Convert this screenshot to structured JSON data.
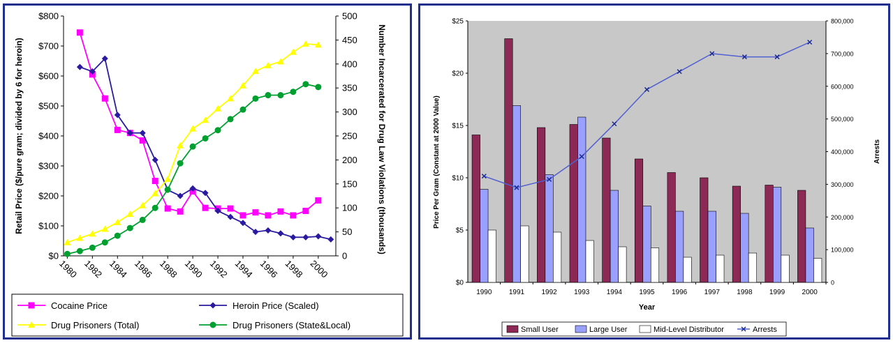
{
  "chart_data": [
    {
      "type": "line",
      "x": [
        1980,
        1981,
        1982,
        1983,
        1984,
        1985,
        1986,
        1987,
        1988,
        1989,
        1990,
        1991,
        1992,
        1993,
        1994,
        1995,
        1996,
        1997,
        1998,
        1999,
        2000
      ],
      "x_ticks": [
        "1980",
        "1982",
        "1984",
        "1986",
        "1988",
        "1990",
        "1992",
        "1994",
        "1996",
        "1998",
        "2000"
      ],
      "y_left_ticks": [
        "$0",
        "$100",
        "$200",
        "$300",
        "$400",
        "$500",
        "$600",
        "$700",
        "$800"
      ],
      "y_right_ticks": [
        "0",
        "50",
        "100",
        "150",
        "200",
        "250",
        "300",
        "350",
        "400",
        "450",
        "500"
      ],
      "ylabel": "Retail Price ($/pure gram; divided by 6 for heroin)",
      "ylabel_right": "Number Incarcerated for Drug Law Violations (thousands)",
      "ylim": [
        0,
        800
      ],
      "ylim_right": [
        0,
        500
      ],
      "grid": false,
      "legend_position": "bottom",
      "series": [
        {
          "name": "Cocaine Price",
          "axis": "left",
          "color": "#ff00ff",
          "marker": "square",
          "x": [
            1981,
            1982,
            1983,
            1984,
            1985,
            1986,
            1987,
            1988,
            1989,
            1990,
            1991,
            1992,
            1993,
            1994,
            1995,
            1996,
            1997,
            1998,
            1999,
            2000
          ],
          "values": [
            745,
            605,
            525,
            420,
            410,
            385,
            250,
            158,
            148,
            215,
            160,
            158,
            158,
            135,
            145,
            135,
            148,
            135,
            150,
            185
          ]
        },
        {
          "name": "Heroin Price (Scaled)",
          "axis": "left",
          "color": "#2a1aa0",
          "marker": "diamond",
          "x": [
            1981,
            1982,
            1983,
            1984,
            1985,
            1986,
            1987,
            1988,
            1989,
            1990,
            1991,
            1992,
            1993,
            1994,
            1995,
            1996,
            1997,
            1998,
            1999,
            2000,
            2001
          ],
          "values": [
            630,
            615,
            658,
            470,
            410,
            410,
            320,
            220,
            200,
            225,
            210,
            150,
            130,
            110,
            80,
            85,
            75,
            62,
            62,
            65,
            55
          ]
        },
        {
          "name": "Drug Prisoners (Total)",
          "axis": "right",
          "color": "#ffff00",
          "marker": "triangle",
          "x": [
            1980,
            1981,
            1982,
            1983,
            1984,
            1985,
            1986,
            1987,
            1988,
            1989,
            1990,
            1991,
            1992,
            1993,
            1994,
            1995,
            1996,
            1997,
            1998,
            1999,
            2000
          ],
          "values": [
            28,
            37,
            46,
            56,
            70,
            87,
            105,
            130,
            160,
            230,
            265,
            283,
            307,
            328,
            355,
            385,
            397,
            405,
            425,
            442,
            440
          ]
        },
        {
          "name": "Drug Prisoners (State&Local)",
          "axis": "right",
          "color": "#00a030",
          "marker": "circle",
          "x": [
            1980,
            1981,
            1982,
            1983,
            1984,
            1985,
            1986,
            1987,
            1988,
            1989,
            1990,
            1991,
            1992,
            1993,
            1994,
            1995,
            1996,
            1997,
            1998,
            1999,
            2000
          ],
          "values": [
            4,
            10,
            17,
            28,
            42,
            58,
            75,
            100,
            138,
            193,
            228,
            245,
            262,
            285,
            305,
            328,
            335,
            335,
            342,
            358,
            352
          ]
        }
      ]
    },
    {
      "type": "bar",
      "categories": [
        "1990",
        "1991",
        "1992",
        "1993",
        "1994",
        "1995",
        "1996",
        "1997",
        "1998",
        "1999",
        "2000"
      ],
      "xlabel": "Year",
      "ylabel": "Price Per Gram (Constant at 2000 Value)",
      "ylabel_right": "Arrests",
      "y_left_ticks": [
        "$0",
        "$5",
        "$10",
        "$15",
        "$20",
        "$25"
      ],
      "y_right_ticks": [
        "0",
        "100,000",
        "200,000",
        "300,000",
        "400,000",
        "500,000",
        "600,000",
        "700,000",
        "800,000"
      ],
      "ylim": [
        0,
        25
      ],
      "ylim_right": [
        0,
        800000
      ],
      "grid": false,
      "legend_position": "bottom",
      "background": "#c8c8c8",
      "series": [
        {
          "name": "Small User",
          "axis": "left",
          "color": "#8c2a55",
          "values": [
            14.1,
            23.3,
            14.8,
            15.1,
            13.8,
            11.8,
            10.5,
            10.0,
            9.2,
            9.3,
            8.8
          ]
        },
        {
          "name": "Large User",
          "axis": "left",
          "color": "#9aa0ff",
          "values": [
            8.9,
            16.9,
            10.3,
            15.8,
            8.8,
            7.3,
            6.8,
            6.8,
            6.6,
            9.1,
            5.2
          ]
        },
        {
          "name": "Mid-Level Distributor",
          "axis": "left",
          "color": "#ffffff",
          "values": [
            5.0,
            5.4,
            4.8,
            4.0,
            3.4,
            3.3,
            2.4,
            2.6,
            2.8,
            2.6,
            2.3
          ]
        },
        {
          "name": "Arrests",
          "axis": "right",
          "color": "#5060d0",
          "type": "line",
          "marker": "x",
          "values": [
            325000,
            290000,
            315000,
            385000,
            485000,
            590000,
            645000,
            700000,
            690000,
            690000,
            735000
          ]
        }
      ]
    }
  ]
}
